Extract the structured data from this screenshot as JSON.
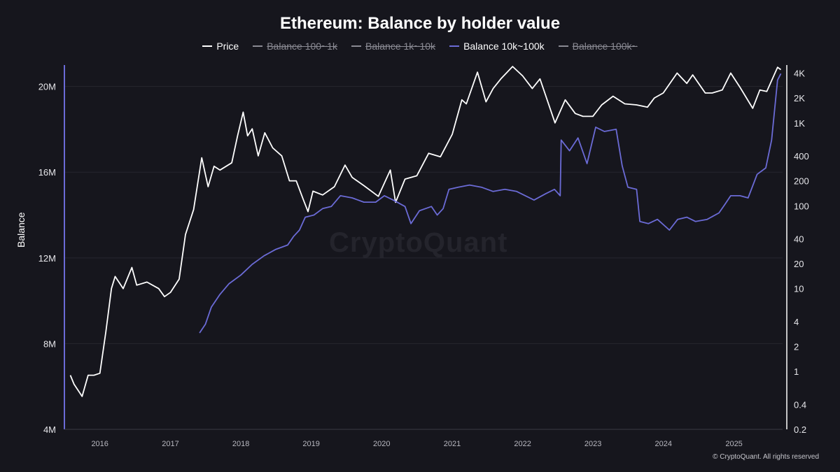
{
  "chart_data": {
    "type": "line",
    "title": "Ethereum: Balance by holder value",
    "ylabel": "Balance",
    "y_left": {
      "ticks": [
        "4M",
        "8M",
        "12M",
        "16M",
        "20M"
      ],
      "range": [
        4000000,
        21000000
      ]
    },
    "y_right": {
      "scale": "log",
      "ticks": [
        "0.2",
        "0.4",
        "1",
        "2",
        "4",
        "10",
        "20",
        "40",
        "100",
        "200",
        "400",
        "1K",
        "2K",
        "4K"
      ],
      "range": [
        0.2,
        5000
      ]
    },
    "x_ticks": [
      "2016",
      "2017",
      "2018",
      "2019",
      "2020",
      "2021",
      "2022",
      "2023",
      "2024",
      "2025"
    ],
    "legend": [
      {
        "name": "Price",
        "color": "#ffffff",
        "active": true
      },
      {
        "name": "Balance 100~1k",
        "color": "#8a8a93",
        "active": false
      },
      {
        "name": "Balance 1k~10k",
        "color": "#8a8a93",
        "active": false
      },
      {
        "name": "Balance 10k~100k",
        "color": "#6b6bd6",
        "active": true
      },
      {
        "name": "Balance 100k~",
        "color": "#8a8a93",
        "active": false
      }
    ],
    "series": [
      {
        "name": "Price",
        "axis": "right",
        "color": "#ffffff",
        "points": [
          [
            "2015-08-01",
            0.9
          ],
          [
            "2015-08-20",
            0.7
          ],
          [
            "2015-10-01",
            0.5
          ],
          [
            "2015-11-01",
            0.9
          ],
          [
            "2015-12-01",
            0.9
          ],
          [
            "2016-01-01",
            0.95
          ],
          [
            "2016-02-01",
            3
          ],
          [
            "2016-03-01",
            10
          ],
          [
            "2016-03-20",
            14
          ],
          [
            "2016-05-01",
            10
          ],
          [
            "2016-06-15",
            18
          ],
          [
            "2016-07-10",
            11
          ],
          [
            "2016-09-01",
            12
          ],
          [
            "2016-11-01",
            10
          ],
          [
            "2016-12-01",
            8
          ],
          [
            "2017-01-01",
            9
          ],
          [
            "2017-02-15",
            13
          ],
          [
            "2017-03-20",
            45
          ],
          [
            "2017-05-01",
            90
          ],
          [
            "2017-06-12",
            380
          ],
          [
            "2017-07-15",
            170
          ],
          [
            "2017-08-15",
            300
          ],
          [
            "2017-09-15",
            270
          ],
          [
            "2017-11-15",
            330
          ],
          [
            "2017-12-15",
            700
          ],
          [
            "2018-01-13",
            1350
          ],
          [
            "2018-02-05",
            700
          ],
          [
            "2018-03-01",
            850
          ],
          [
            "2018-04-01",
            400
          ],
          [
            "2018-05-05",
            760
          ],
          [
            "2018-06-15",
            500
          ],
          [
            "2018-08-01",
            400
          ],
          [
            "2018-09-10",
            200
          ],
          [
            "2018-10-15",
            200
          ],
          [
            "2018-11-20",
            120
          ],
          [
            "2018-12-15",
            85
          ],
          [
            "2019-01-10",
            150
          ],
          [
            "2019-03-01",
            135
          ],
          [
            "2019-05-01",
            170
          ],
          [
            "2019-06-25",
            310
          ],
          [
            "2019-08-01",
            220
          ],
          [
            "2019-10-01",
            175
          ],
          [
            "2019-12-15",
            130
          ],
          [
            "2020-02-15",
            270
          ],
          [
            "2020-03-13",
            110
          ],
          [
            "2020-05-01",
            210
          ],
          [
            "2020-07-01",
            230
          ],
          [
            "2020-09-01",
            430
          ],
          [
            "2020-11-01",
            390
          ],
          [
            "2021-01-01",
            730
          ],
          [
            "2021-02-20",
            1900
          ],
          [
            "2021-03-15",
            1700
          ],
          [
            "2021-05-12",
            4100
          ],
          [
            "2021-06-25",
            1800
          ],
          [
            "2021-08-01",
            2600
          ],
          [
            "2021-09-10",
            3400
          ],
          [
            "2021-11-10",
            4800
          ],
          [
            "2022-01-01",
            3700
          ],
          [
            "2022-02-20",
            2600
          ],
          [
            "2022-04-01",
            3400
          ],
          [
            "2022-06-18",
            1000
          ],
          [
            "2022-08-10",
            1900
          ],
          [
            "2022-10-01",
            1300
          ],
          [
            "2022-11-10",
            1200
          ],
          [
            "2022-12-31",
            1200
          ],
          [
            "2023-02-15",
            1650
          ],
          [
            "2023-04-15",
            2100
          ],
          [
            "2023-06-15",
            1700
          ],
          [
            "2023-08-15",
            1650
          ],
          [
            "2023-10-10",
            1550
          ],
          [
            "2023-11-15",
            2000
          ],
          [
            "2023-12-31",
            2300
          ],
          [
            "2024-03-12",
            4000
          ],
          [
            "2024-05-01",
            3000
          ],
          [
            "2024-06-01",
            3800
          ],
          [
            "2024-08-05",
            2300
          ],
          [
            "2024-09-10",
            2300
          ],
          [
            "2024-11-01",
            2500
          ],
          [
            "2024-12-15",
            4000
          ],
          [
            "2025-02-01",
            2700
          ],
          [
            "2025-04-08",
            1500
          ],
          [
            "2025-05-15",
            2500
          ],
          [
            "2025-06-20",
            2400
          ],
          [
            "2025-08-15",
            4700
          ],
          [
            "2025-09-01",
            4400
          ]
        ]
      },
      {
        "name": "Balance 10k~100k",
        "axis": "left",
        "color": "#6b6bd6",
        "points": [
          [
            "2017-06-01",
            8.5
          ],
          [
            "2017-07-01",
            8.9
          ],
          [
            "2017-08-01",
            9.7
          ],
          [
            "2017-09-15",
            10.3
          ],
          [
            "2017-11-01",
            10.8
          ],
          [
            "2018-01-01",
            11.2
          ],
          [
            "2018-03-01",
            11.7
          ],
          [
            "2018-05-01",
            12.1
          ],
          [
            "2018-07-01",
            12.4
          ],
          [
            "2018-09-01",
            12.6
          ],
          [
            "2018-10-01",
            13.0
          ],
          [
            "2018-11-01",
            13.3
          ],
          [
            "2018-12-01",
            13.9
          ],
          [
            "2019-01-15",
            14.0
          ],
          [
            "2019-03-01",
            14.3
          ],
          [
            "2019-04-15",
            14.4
          ],
          [
            "2019-06-01",
            14.9
          ],
          [
            "2019-08-01",
            14.8
          ],
          [
            "2019-10-01",
            14.6
          ],
          [
            "2019-12-01",
            14.6
          ],
          [
            "2020-01-15",
            14.9
          ],
          [
            "2020-03-01",
            14.7
          ],
          [
            "2020-05-01",
            14.4
          ],
          [
            "2020-06-01",
            13.6
          ],
          [
            "2020-07-15",
            14.2
          ],
          [
            "2020-09-15",
            14.4
          ],
          [
            "2020-10-15",
            14.0
          ],
          [
            "2020-11-15",
            14.3
          ],
          [
            "2020-12-15",
            15.2
          ],
          [
            "2021-02-01",
            15.3
          ],
          [
            "2021-04-01",
            15.4
          ],
          [
            "2021-06-01",
            15.3
          ],
          [
            "2021-08-01",
            15.1
          ],
          [
            "2021-10-01",
            15.2
          ],
          [
            "2021-12-01",
            15.1
          ],
          [
            "2022-01-15",
            14.9
          ],
          [
            "2022-03-01",
            14.7
          ],
          [
            "2022-05-01",
            15.0
          ],
          [
            "2022-06-15",
            15.2
          ],
          [
            "2022-07-15",
            14.9
          ],
          [
            "2022-07-20",
            17.5
          ],
          [
            "2022-09-01",
            17.0
          ],
          [
            "2022-10-15",
            17.6
          ],
          [
            "2022-12-01",
            16.4
          ],
          [
            "2023-01-15",
            18.1
          ],
          [
            "2023-03-01",
            17.9
          ],
          [
            "2023-05-01",
            18.0
          ],
          [
            "2023-06-01",
            16.3
          ],
          [
            "2023-07-01",
            15.3
          ],
          [
            "2023-08-15",
            15.2
          ],
          [
            "2023-09-01",
            13.7
          ],
          [
            "2023-10-15",
            13.6
          ],
          [
            "2023-12-01",
            13.8
          ],
          [
            "2024-02-01",
            13.3
          ],
          [
            "2024-03-15",
            13.8
          ],
          [
            "2024-05-01",
            13.9
          ],
          [
            "2024-06-15",
            13.7
          ],
          [
            "2024-08-15",
            13.8
          ],
          [
            "2024-10-15",
            14.1
          ],
          [
            "2024-11-15",
            14.5
          ],
          [
            "2024-12-15",
            14.9
          ],
          [
            "2025-02-01",
            14.9
          ],
          [
            "2025-03-15",
            14.8
          ],
          [
            "2025-05-01",
            15.9
          ],
          [
            "2025-06-15",
            16.2
          ],
          [
            "2025-07-15",
            17.5
          ],
          [
            "2025-08-15",
            20.3
          ],
          [
            "2025-09-01",
            20.6
          ]
        ]
      }
    ]
  },
  "watermark": "CryptoQuant",
  "copyright": "© CryptoQuant. All rights reserved"
}
